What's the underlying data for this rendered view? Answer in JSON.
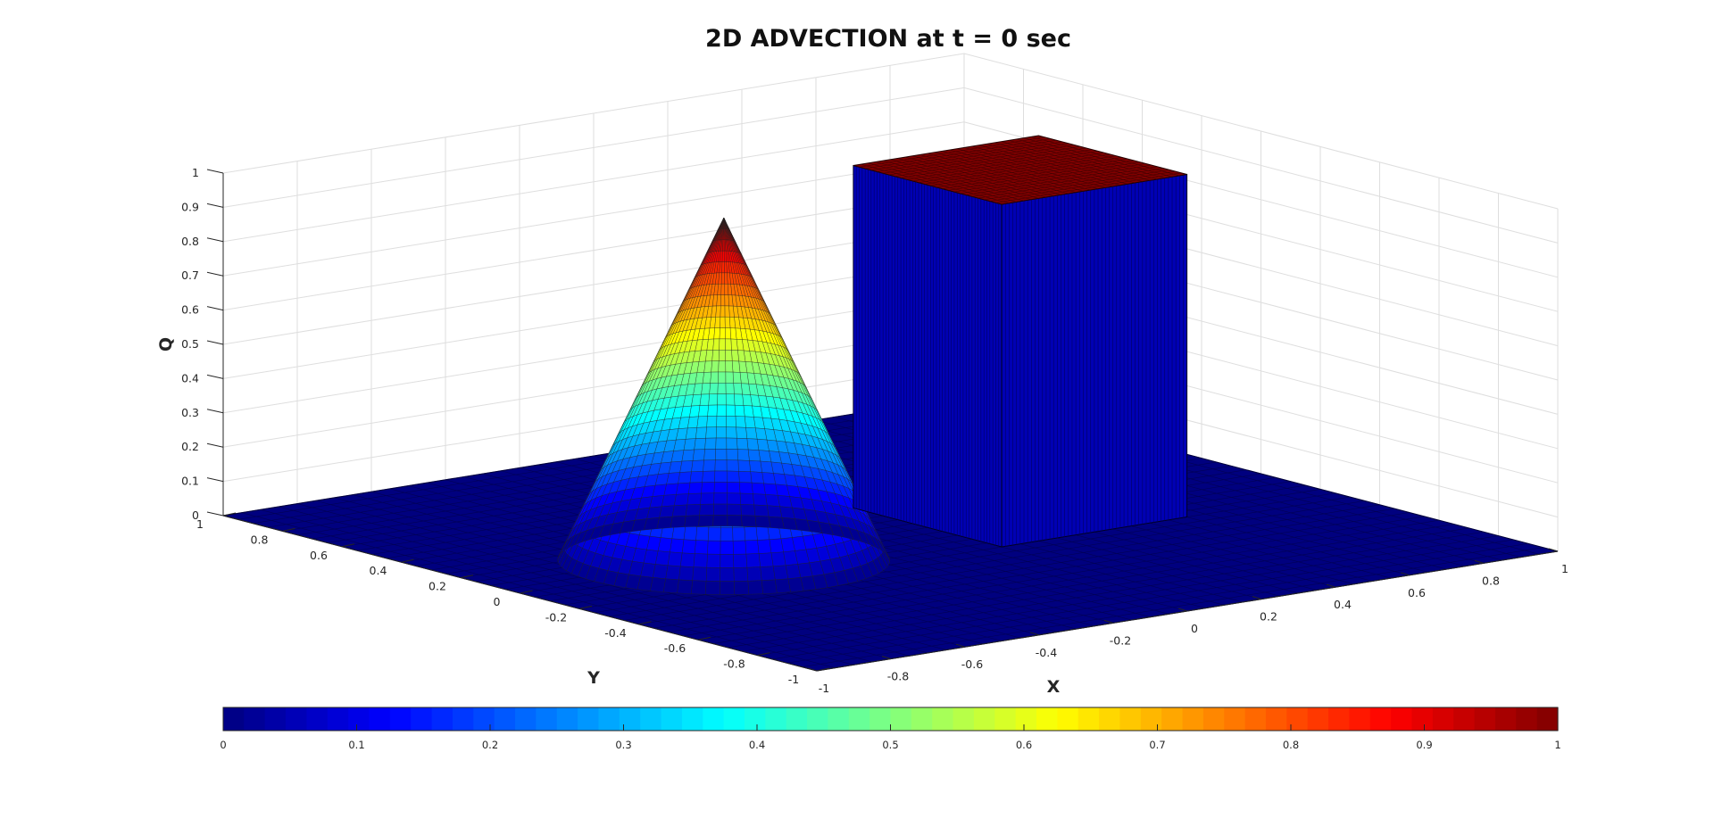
{
  "chart_data": {
    "type": "surface",
    "title": "2D ADVECTION at t = 0 sec",
    "xlabel": "X",
    "ylabel": "Y",
    "zlabel": "Q",
    "xlim": [
      -1,
      1
    ],
    "ylim": [
      -1,
      1
    ],
    "zlim": [
      0,
      1
    ],
    "x_ticks": [
      "-1",
      "-0.8",
      "-0.6",
      "-0.4",
      "-0.2",
      "0",
      "0.2",
      "0.4",
      "0.6",
      "0.8",
      "1"
    ],
    "y_ticks": [
      "-1",
      "-0.8",
      "-0.6",
      "-0.4",
      "-0.2",
      "0",
      "0.2",
      "0.4",
      "0.6",
      "0.8",
      "1"
    ],
    "z_ticks": [
      "0",
      "0.1",
      "0.2",
      "0.3",
      "0.4",
      "0.5",
      "0.6",
      "0.7",
      "0.8",
      "0.9",
      "1"
    ],
    "grid": true,
    "colormap": "jet",
    "features": [
      {
        "shape": "cone",
        "center": [
          -0.45,
          0.0
        ],
        "radius": 0.35,
        "peak": 1.0,
        "base": 0.0
      },
      {
        "shape": "box",
        "x_range": [
          0.1,
          0.6
        ],
        "y_range": [
          -0.25,
          0.25
        ],
        "height": 1.0
      }
    ],
    "colorbar": {
      "ticks": [
        "0",
        "0.1",
        "0.2",
        "0.3",
        "0.4",
        "0.5",
        "0.6",
        "0.7",
        "0.8",
        "0.9",
        "1"
      ],
      "range": [
        0,
        1
      ]
    }
  }
}
